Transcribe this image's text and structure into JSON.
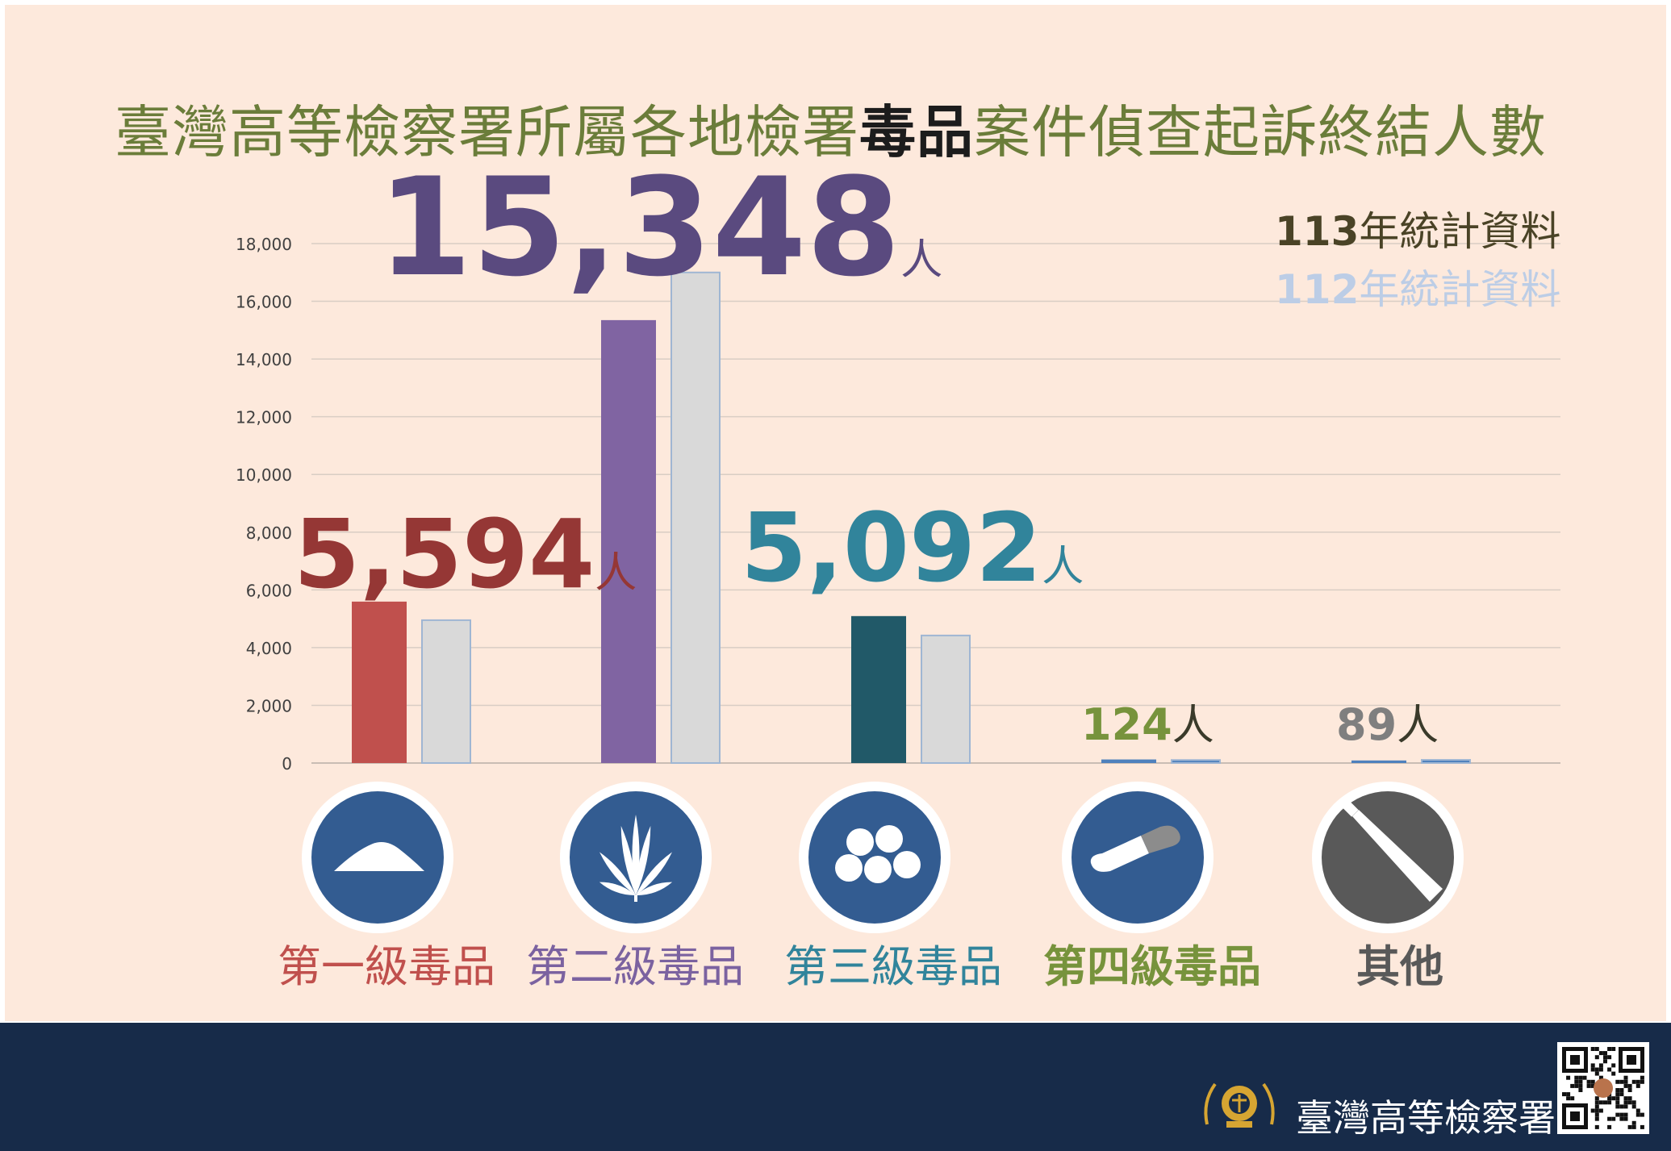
{
  "title_parts": [
    "臺灣高等檢察署所屬各地檢署",
    "毒品",
    "案件偵查起訴終結人數"
  ],
  "legend": [
    {
      "num": "113",
      "text": "年統計資料",
      "color": "#4a4326"
    },
    {
      "num": "112",
      "text": "年統計資料",
      "color": "#bccde6"
    }
  ],
  "chart_data": {
    "type": "bar",
    "categories": [
      "第一級毒品",
      "第二級毒品",
      "第三級毒品",
      "第四級毒品",
      "其他"
    ],
    "series": [
      {
        "name": "113年統計資料",
        "values": [
          5594,
          15348,
          5092,
          124,
          89
        ]
      },
      {
        "name": "112年統計資料",
        "values": [
          4950,
          17000,
          4420,
          105,
          110
        ]
      }
    ],
    "ylim": [
      0,
      18000
    ],
    "yticks": [
      "0",
      "2,000",
      "4,000",
      "6,000",
      "8,000",
      "10,000",
      "12,000",
      "14,000",
      "16,000",
      "18,000"
    ],
    "grid": true,
    "bar_colors_113": [
      "#c0504d",
      "#8064a2",
      "#215968",
      "#4f81bd",
      "#4f81bd"
    ],
    "bar_color_112": "#d9d9d9",
    "callouts": [
      {
        "value": "5,594",
        "unit": "人",
        "color": "#953735"
      },
      {
        "value": "15,348",
        "unit": "人",
        "color": "#5a4a7f"
      },
      {
        "value": "5,092",
        "unit": "人",
        "color": "#31849b"
      },
      {
        "value": "124",
        "unit": "人",
        "color": "#77933c"
      },
      {
        "value": "89",
        "unit": "人",
        "color": "#7f7f7f"
      }
    ]
  },
  "category_labels": [
    {
      "text": "第一級毒品",
      "color": "#c0504d",
      "icon": "powder-icon"
    },
    {
      "text": "第二級毒品",
      "color": "#7b62a0",
      "icon": "cannabis-leaf-icon"
    },
    {
      "text": "第三級毒品",
      "color": "#31849b",
      "icon": "pills-icon"
    },
    {
      "text": "第四級毒品",
      "color": "#77933c",
      "icon": "capsule-icon"
    },
    {
      "text": "其他",
      "color": "#595959",
      "icon": "tube-icon"
    }
  ],
  "footer": {
    "org_name": "臺灣高等檢察署"
  },
  "colors": {
    "panel_bg": "#fde9dc",
    "footer_bg": "#172b49",
    "icon_circle": "#335c91"
  }
}
